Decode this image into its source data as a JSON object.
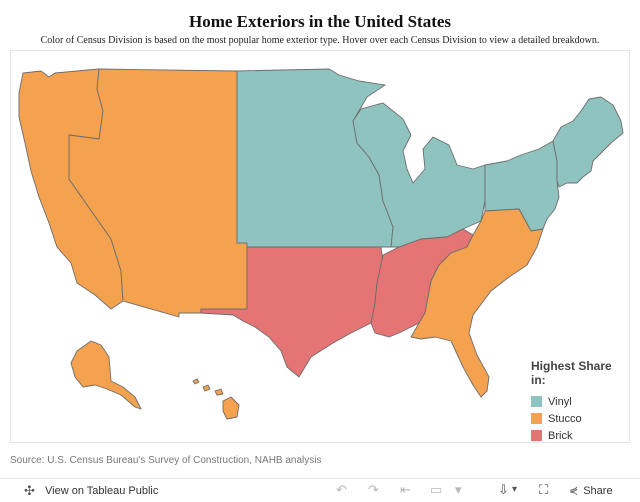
{
  "title": "Home Exteriors in the United States",
  "subtitle": "Color of Census Division is based on the most popular home exterior type. Hover over each Census Division to view a detailed breakdown.",
  "legend": {
    "title": "Highest Share in:",
    "items": [
      {
        "label": "Vinyl",
        "color": "#8fc3bf"
      },
      {
        "label": "Stucco",
        "color": "#f4a24f"
      },
      {
        "label": "Brick",
        "color": "#e57474"
      }
    ]
  },
  "regions": [
    {
      "name": "Pacific",
      "exterior": "Stucco"
    },
    {
      "name": "Mountain",
      "exterior": "Stucco"
    },
    {
      "name": "West North Central",
      "exterior": "Vinyl"
    },
    {
      "name": "East North Central",
      "exterior": "Vinyl"
    },
    {
      "name": "Middle Atlantic",
      "exterior": "Vinyl"
    },
    {
      "name": "New England",
      "exterior": "Vinyl"
    },
    {
      "name": "West South Central",
      "exterior": "Brick"
    },
    {
      "name": "East South Central",
      "exterior": "Brick"
    },
    {
      "name": "South Atlantic",
      "exterior": "Stucco"
    },
    {
      "name": "Alaska",
      "exterior": "Stucco"
    },
    {
      "name": "Hawaii",
      "exterior": "Stucco"
    }
  ],
  "source": "Source: U.S. Census Bureau's Survey of Construction, NAHB analysis",
  "toolbar": {
    "view_label": "View on Tableau Public",
    "share_label": "Share"
  }
}
